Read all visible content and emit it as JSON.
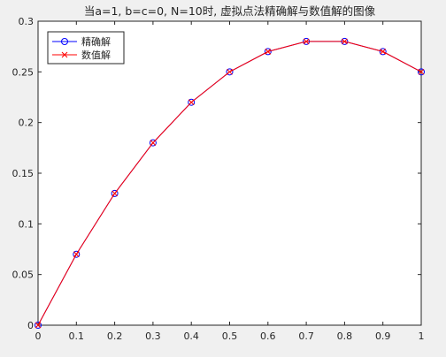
{
  "chart_data": {
    "type": "line",
    "title": "当a=1, b=c=0, N=10时, 虚拟点法精确解与数值解的图像",
    "xlabel": "",
    "ylabel": "",
    "xlim": [
      0,
      1
    ],
    "ylim": [
      0,
      0.3
    ],
    "x_ticks": [
      0,
      0.1,
      0.2,
      0.3,
      0.4,
      0.5,
      0.6,
      0.7,
      0.8,
      0.9,
      1
    ],
    "x_tick_labels": [
      "0",
      "0.1",
      "0.2",
      "0.3",
      "0.4",
      "0.5",
      "0.6",
      "0.7",
      "0.8",
      "0.9",
      "1"
    ],
    "y_ticks": [
      0,
      0.05,
      0.1,
      0.15,
      0.2,
      0.25,
      0.3
    ],
    "y_tick_labels": [
      "0",
      "0.05",
      "0.1",
      "0.15",
      "0.2",
      "0.25",
      "0.3"
    ],
    "grid": false,
    "legend_position": "top-left",
    "x": [
      0,
      0.1,
      0.2,
      0.3,
      0.4,
      0.5,
      0.6,
      0.7,
      0.8,
      0.9,
      1.0
    ],
    "series": [
      {
        "name": "精确解",
        "marker": "circle",
        "line_color": "#0000ff",
        "marker_color": "#0000ff",
        "values": [
          0,
          0.07,
          0.13,
          0.18,
          0.22,
          0.25,
          0.27,
          0.28,
          0.28,
          0.27,
          0.25
        ]
      },
      {
        "name": "数值解",
        "marker": "x",
        "line_color": "#ff0000",
        "marker_color": "#ff0000",
        "values": [
          0,
          0.07,
          0.13,
          0.18,
          0.22,
          0.25,
          0.27,
          0.28,
          0.28,
          0.27,
          0.25
        ]
      }
    ]
  }
}
